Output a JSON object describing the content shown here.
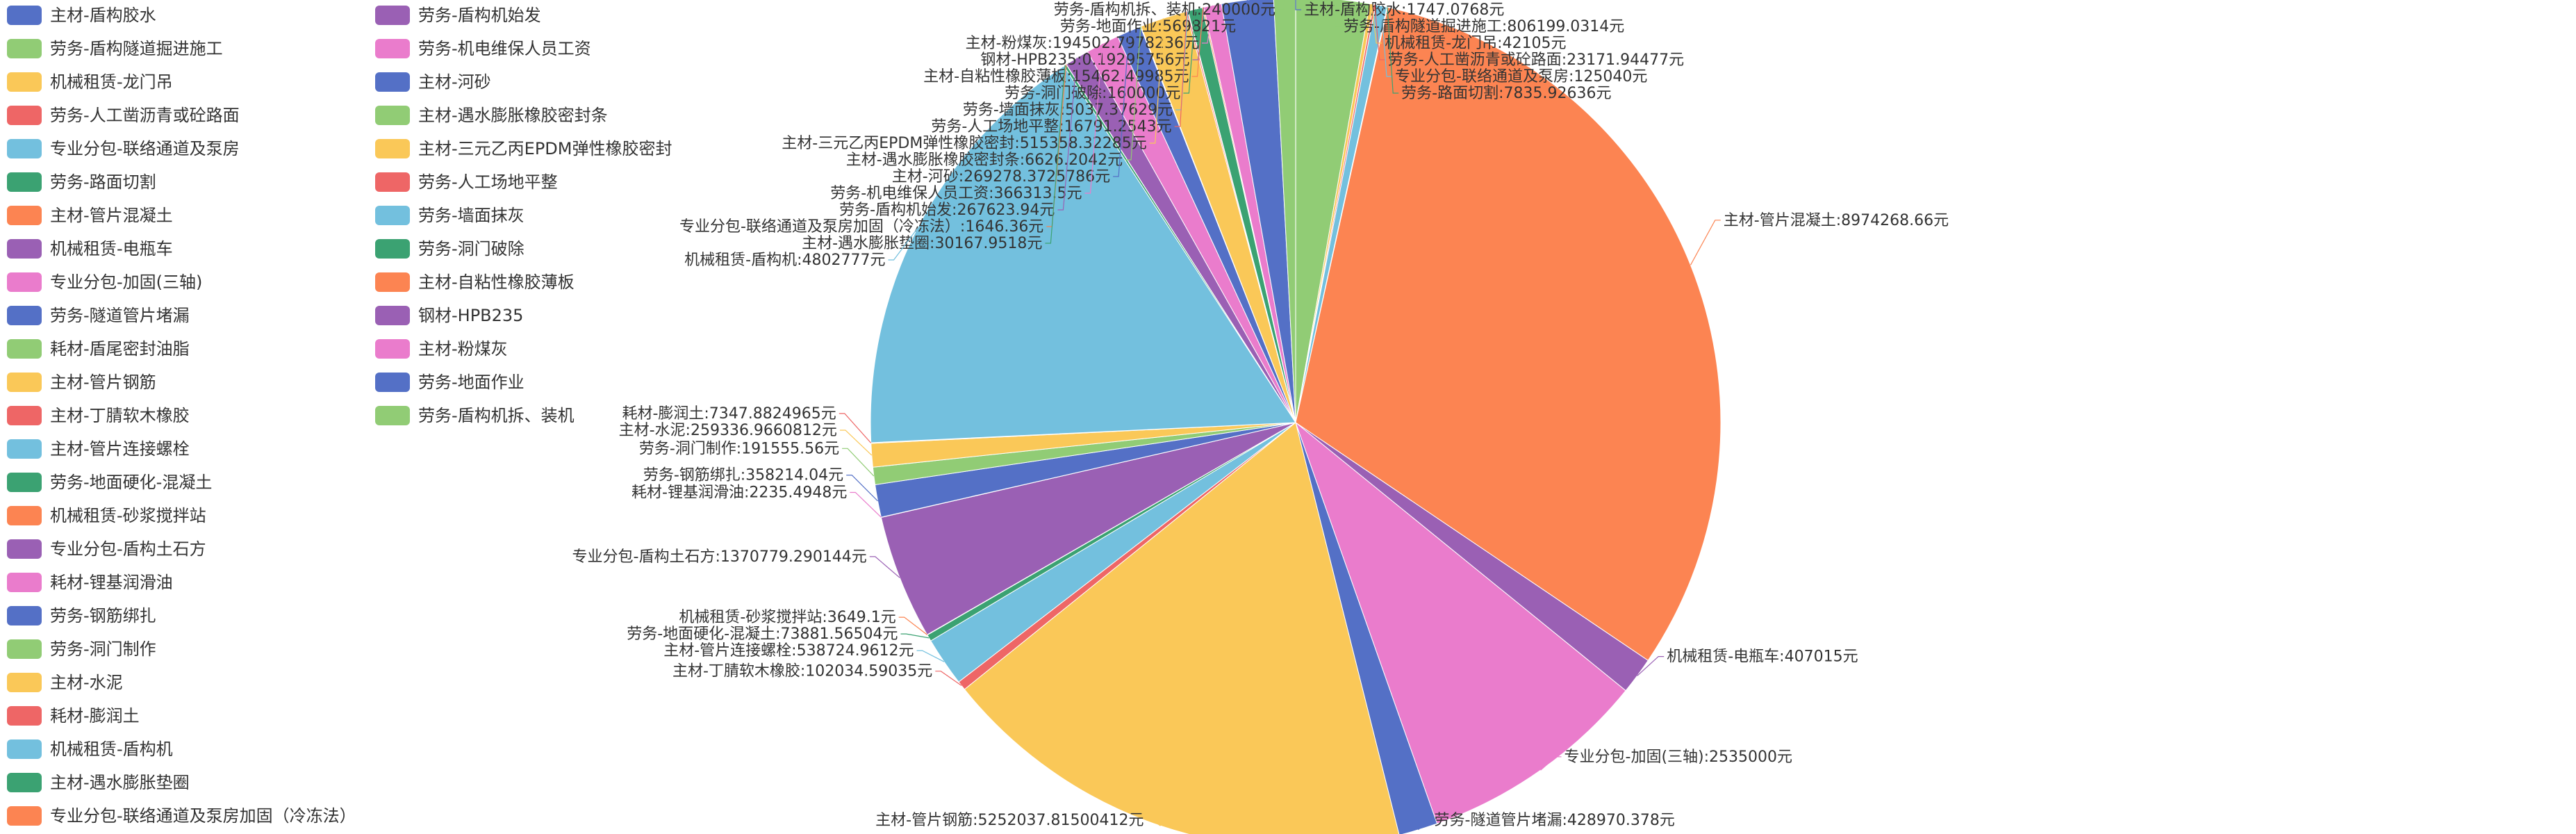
{
  "chart_data": {
    "type": "pie",
    "title": "",
    "unit": "元",
    "legend_position": "left",
    "slices": [
      {
        "name": "主材-盾构胶水",
        "value": 1747.0768,
        "label": "主材-盾构胶水:1747.0768元",
        "color": "#5470c6"
      },
      {
        "name": "劳务-盾构隧道掘进施工",
        "value": 806199.0314,
        "label": "劳务-盾构隧道掘进施工:806199.0314元",
        "color": "#91cc75"
      },
      {
        "name": "机械租赁-龙门吊",
        "value": 42105,
        "label": "机械租赁-龙门吊:42105元",
        "color": "#fac858"
      },
      {
        "name": "劳务-人工凿沥青或砼路面",
        "value": 23171.94477,
        "label": "劳务-人工凿沥青或砼路面:23171.94477元",
        "color": "#ee6666"
      },
      {
        "name": "专业分包-联络通道及泵房",
        "value": 125040,
        "label": "专业分包-联络通道及泵房:125040元",
        "color": "#73c0de"
      },
      {
        "name": "劳务-路面切割",
        "value": 7835.92636,
        "label": "劳务-路面切割:7835.92636元",
        "color": "#3ba272"
      },
      {
        "name": "主材-管片混凝土",
        "value": 8974268.66,
        "label": "主材-管片混凝土:8974268.66元",
        "color": "#fc8452"
      },
      {
        "name": "机械租赁-电瓶车",
        "value": 407015,
        "label": "机械租赁-电瓶车:407015元",
        "color": "#9a60b4"
      },
      {
        "name": "专业分包-加固(三轴)",
        "value": 2535000,
        "label": "专业分包-加固(三轴):2535000元",
        "color": "#ea7ccc"
      },
      {
        "name": "劳务-隧道管片堵漏",
        "value": 428970.378,
        "label": "劳务-隧道管片堵漏:428970.378元",
        "color": "#5470c6"
      },
      {
        "name": "耗材-盾尾密封油脂",
        "value": 0,
        "label": "",
        "color": "#91cc75"
      },
      {
        "name": "主材-管片钢筋",
        "value": 5252037.81500412,
        "label": "主材-管片钢筋:5252037.81500412元",
        "color": "#fac858"
      },
      {
        "name": "主材-丁腈软木橡胶",
        "value": 102034.59035,
        "label": "主材-丁腈软木橡胶:102034.59035元",
        "color": "#ee6666"
      },
      {
        "name": "主材-管片连接螺栓",
        "value": 538724.9612,
        "label": "主材-管片连接螺栓:538724.9612元",
        "color": "#73c0de"
      },
      {
        "name": "劳务-地面硬化-混凝土",
        "value": 73881.56504,
        "label": "劳务-地面硬化-混凝土:73881.56504元",
        "color": "#3ba272"
      },
      {
        "name": "机械租赁-砂浆搅拌站",
        "value": 3649.1,
        "label": "机械租赁-砂浆搅拌站:3649.1元",
        "color": "#fc8452"
      },
      {
        "name": "专业分包-盾构土石方",
        "value": 1370779.290144,
        "label": "专业分包-盾构土石方:1370779.290144元",
        "color": "#9a60b4"
      },
      {
        "name": "耗材-锂基润滑油",
        "value": 2235.4948,
        "label": "耗材-锂基润滑油:2235.4948元",
        "color": "#ea7ccc"
      },
      {
        "name": "劳务-钢筋绑扎",
        "value": 358214.04,
        "label": "劳务-钢筋绑扎:358214.04元",
        "color": "#5470c6"
      },
      {
        "name": "劳务-洞门制作",
        "value": 191555.56,
        "label": "劳务-洞门制作:191555.56元",
        "color": "#91cc75"
      },
      {
        "name": "主材-水泥",
        "value": 259336.9660812,
        "label": "主材-水泥:259336.9660812元",
        "color": "#fac858"
      },
      {
        "name": "耗材-膨润土",
        "value": 7347.8824965,
        "label": "耗材-膨润土:7347.8824965元",
        "color": "#ee6666"
      },
      {
        "name": "机械租赁-盾构机",
        "value": 4802777,
        "label": "机械租赁-盾构机:4802777元",
        "color": "#73c0de"
      },
      {
        "name": "主材-遇水膨胀垫圈",
        "value": 30167.9518,
        "label": "主材-遇水膨胀垫圈:30167.9518元",
        "color": "#3ba272"
      },
      {
        "name": "专业分包-联络通道及泵房加固（冷冻法）",
        "value": 1646.36,
        "label": "专业分包-联络通道及泵房加固（冷冻法）:1646.36元",
        "color": "#fc8452"
      },
      {
        "name": "劳务-盾构机始发",
        "value": 267623.94,
        "label": "劳务-盾构机始发:267623.94元",
        "color": "#9a60b4"
      },
      {
        "name": "劳务-机电维保人员工资",
        "value": 366313.5,
        "label": "劳务-机电维保人员工资:366313.5元",
        "color": "#ea7ccc"
      },
      {
        "name": "主材-河砂",
        "value": 269278.3725786,
        "label": "主材-河砂:269278.3725786元",
        "color": "#5470c6"
      },
      {
        "name": "主材-遇水膨胀橡胶密封条",
        "value": 6626.2042,
        "label": "主材-遇水膨胀橡胶密封条:6626.2042元",
        "color": "#91cc75"
      },
      {
        "name": "主材-三元乙丙EPDM弹性橡胶密封",
        "value": 515358.32285,
        "label": "主材-三元乙丙EPDM弹性橡胶密封:515358.32285元",
        "color": "#fac858"
      },
      {
        "name": "劳务-人工场地平整",
        "value": 16791.2543,
        "label": "劳务-人工场地平整:16791.2543元",
        "color": "#ee6666"
      },
      {
        "name": "劳务-墙面抹灰",
        "value": 5037.37629,
        "label": "劳务-墙面抹灰:5037.37629元",
        "color": "#73c0de"
      },
      {
        "name": "劳务-洞门破除",
        "value": 160000,
        "label": "劳务-洞门破除:160000元",
        "color": "#3ba272"
      },
      {
        "name": "主材-自粘性橡胶薄板",
        "value": 15462.49985,
        "label": "主材-自粘性橡胶薄板:15462.49985元",
        "color": "#fc8452"
      },
      {
        "name": "钢材-HPB235",
        "value": 0.19295756,
        "label": "钢材-HPB235:0.19295756元",
        "color": "#9a60b4"
      },
      {
        "name": "主材-粉煤灰",
        "value": 194502.7978236,
        "label": "主材-粉煤灰:194502.7978236元",
        "color": "#ea7ccc"
      },
      {
        "name": "劳务-地面作业",
        "value": 569821,
        "label": "劳务-地面作业:569821元",
        "color": "#5470c6"
      },
      {
        "name": "劳务-盾构机拆、装机",
        "value": 240000,
        "label": "劳务-盾构机拆、装机:240000元",
        "color": "#91cc75"
      }
    ]
  }
}
